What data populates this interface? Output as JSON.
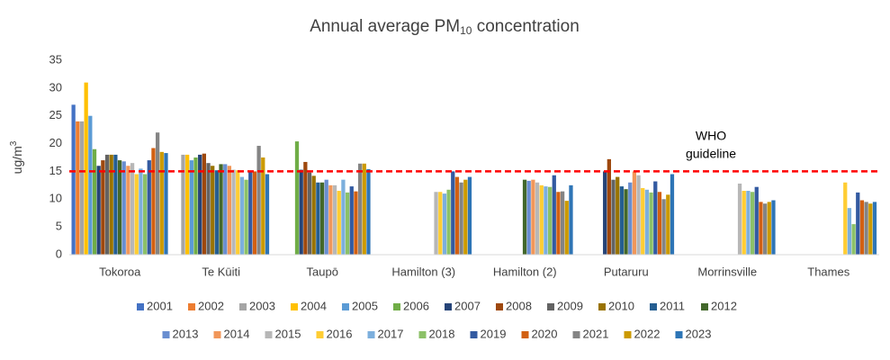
{
  "chart_data": {
    "type": "bar",
    "title_parts": [
      "Annual average PM",
      "10",
      " concentration"
    ],
    "y_label_parts": [
      "ug/m",
      "3"
    ],
    "categories": [
      "Tokoroa",
      "Te Kūiti",
      "Taupō",
      "Hamilton (3)",
      "Hamilton (2)",
      "Putaruru",
      "Morrinsville",
      "Thames"
    ],
    "series": [
      {
        "name": "2001",
        "color": "#4472c4",
        "values": [
          27,
          null,
          null,
          null,
          null,
          null,
          null,
          null
        ]
      },
      {
        "name": "2002",
        "color": "#ed7d31",
        "values": [
          24,
          null,
          null,
          null,
          null,
          null,
          null,
          null
        ]
      },
      {
        "name": "2003",
        "color": "#a5a5a5",
        "values": [
          24,
          18,
          null,
          null,
          null,
          null,
          null,
          null
        ]
      },
      {
        "name": "2004",
        "color": "#ffc000",
        "values": [
          31,
          18,
          null,
          null,
          null,
          null,
          null,
          null
        ]
      },
      {
        "name": "2005",
        "color": "#5b9bd5",
        "values": [
          25,
          17,
          null,
          null,
          null,
          null,
          null,
          null
        ]
      },
      {
        "name": "2006",
        "color": "#70ad47",
        "values": [
          19,
          17.5,
          20.4,
          null,
          null,
          null,
          null,
          null
        ]
      },
      {
        "name": "2007",
        "color": "#264478",
        "values": [
          16,
          18,
          15.3,
          null,
          null,
          15,
          null,
          null
        ]
      },
      {
        "name": "2008",
        "color": "#9e480e",
        "values": [
          17,
          18.2,
          16.7,
          null,
          null,
          17.2,
          null,
          null
        ]
      },
      {
        "name": "2009",
        "color": "#636363",
        "values": [
          18,
          16.5,
          14.8,
          null,
          null,
          13.5,
          null,
          null
        ]
      },
      {
        "name": "2010",
        "color": "#997300",
        "values": [
          18,
          16,
          14.2,
          null,
          null,
          14,
          null,
          null
        ]
      },
      {
        "name": "2011",
        "color": "#255e91",
        "values": [
          18,
          15.2,
          13,
          null,
          null,
          12.3,
          null,
          null
        ]
      },
      {
        "name": "2012",
        "color": "#43682b",
        "values": [
          17,
          16.3,
          13,
          null,
          13.5,
          11.8,
          null,
          null
        ]
      },
      {
        "name": "2013",
        "color": "#698ed0",
        "values": [
          16.8,
          16.3,
          13.5,
          null,
          13.3,
          13,
          null,
          null
        ]
      },
      {
        "name": "2014",
        "color": "#f1975a",
        "values": [
          16,
          16,
          12.5,
          null,
          13.5,
          15,
          null,
          null
        ]
      },
      {
        "name": "2015",
        "color": "#b7b7b7",
        "values": [
          16.5,
          15.3,
          12.5,
          11.3,
          13,
          14.3,
          12.8,
          null
        ]
      },
      {
        "name": "2016",
        "color": "#ffcd33",
        "values": [
          14.5,
          15.2,
          11.5,
          11.3,
          12.5,
          12,
          11.5,
          13
        ]
      },
      {
        "name": "2017",
        "color": "#7cafdd",
        "values": [
          15.5,
          14,
          13.5,
          11,
          12.3,
          11.7,
          11.5,
          8.4
        ]
      },
      {
        "name": "2018",
        "color": "#8cc168",
        "values": [
          14.5,
          13.5,
          11.2,
          11.7,
          12.2,
          11.2,
          11.3,
          5.5
        ]
      },
      {
        "name": "2019",
        "color": "#335aa1",
        "values": [
          17,
          15,
          12.3,
          15,
          14.3,
          13.2,
          12.2,
          11.2
        ]
      },
      {
        "name": "2020",
        "color": "#d26012",
        "values": [
          19.2,
          15,
          11.4,
          14,
          11.3,
          11.3,
          9.5,
          9.8
        ]
      },
      {
        "name": "2021",
        "color": "#848484",
        "values": [
          22,
          19.6,
          16.4,
          13,
          11.4,
          10,
          9.2,
          9.5
        ]
      },
      {
        "name": "2022",
        "color": "#cc9a00",
        "values": [
          18.5,
          17.5,
          16.4,
          13.5,
          9.7,
          10.8,
          9.5,
          9.2
        ]
      },
      {
        "name": "2023",
        "color": "#2e75b6",
        "values": [
          18.3,
          14.5,
          15.4,
          14,
          12.5,
          14.5,
          9.8,
          9.5
        ]
      }
    ],
    "ylim": [
      0,
      35
    ],
    "yticks": [
      0,
      5,
      10,
      15,
      20,
      25,
      30,
      35
    ],
    "grid": false,
    "reference_line": {
      "value": 15,
      "color": "#ff0000",
      "label_lines": [
        "WHO",
        "guideline"
      ]
    },
    "legend": "bottom"
  }
}
